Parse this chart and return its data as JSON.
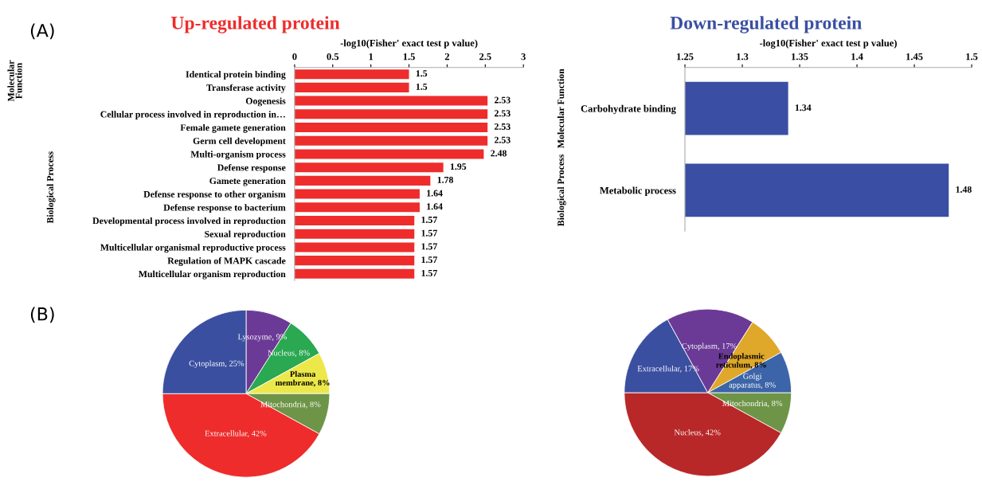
{
  "chart_data": [
    {
      "type": "bar",
      "orientation": "horizontal",
      "title": "Up-regulated protein",
      "xlabel": "-log10(Fisher' exact test p value)",
      "categories": [
        "Identical protein binding",
        "Transferase activity",
        "Oogenesis",
        "Cellular process involved in reproduction in…",
        "Female gamete generation",
        "Germ cell development",
        "Multi-organism process",
        "Defense response",
        "Gamete generation",
        "Defense response to other organism",
        "Defense response to bacterium",
        "Developmental process involved in reproduction",
        "Sexual reproduction",
        "Multicellular organismal reproductive process",
        "Regulation of MAPK cascade",
        "Multicellular organism reproduction"
      ],
      "values": [
        1.5,
        1.5,
        2.53,
        2.53,
        2.53,
        2.53,
        2.48,
        1.95,
        1.78,
        1.64,
        1.64,
        1.57,
        1.57,
        1.57,
        1.57,
        1.57
      ],
      "color": "#ee2c2c",
      "xlim": [
        0,
        3
      ],
      "xticks": [
        0,
        0.5,
        1,
        1.5,
        2,
        2.5,
        3
      ],
      "data_labels": true,
      "annotations": [
        "(A)",
        "Molecular Function",
        "Biological Process"
      ]
    },
    {
      "type": "bar",
      "orientation": "horizontal",
      "title": "Down-regulated protein",
      "xlabel": "-log10(Fisher' exact test p value)",
      "categories": [
        "Carbohydrate binding",
        "Metabolic process"
      ],
      "values": [
        1.34,
        1.48
      ],
      "color": "#3a4fa3",
      "xlim": [
        1.25,
        1.5
      ],
      "xticks": [
        1.25,
        1.3,
        1.35,
        1.4,
        1.45,
        1.5
      ],
      "data_labels": true,
      "annotations": [
        "Molecular Function",
        "Biological Process"
      ]
    },
    {
      "type": "pie",
      "categories": [
        "Lysozyme",
        "Nucleus",
        "Plasma membrane",
        "Mitochondria",
        "Extracellular",
        "Cytoplasm"
      ],
      "values": [
        9,
        8,
        8,
        8,
        42,
        25
      ],
      "value_labels": [
        "9%",
        "8%",
        "8%",
        "8%",
        "42%",
        "25%"
      ],
      "colors": [
        "#6b3a96",
        "#2aa852",
        "#ece84a",
        "#6e9447",
        "#ee2c2c",
        "#3b4fa0"
      ],
      "annotations": [
        "(B)"
      ]
    },
    {
      "type": "pie",
      "categories": [
        "Mitochondria",
        "Nucleus",
        "Extracellular",
        "Cytoplasm",
        "Endoplasmic reticulum",
        "Golgi apparatus"
      ],
      "values": [
        8,
        42,
        17,
        17,
        8,
        8
      ],
      "value_labels": [
        "8%",
        "42%",
        "17%",
        "17%",
        "8%",
        "8%"
      ],
      "colors": [
        "#6e9447",
        "#b82828",
        "#3b4fa0",
        "#6b3a96",
        "#e0a82a",
        "#3c64a8"
      ]
    }
  ]
}
